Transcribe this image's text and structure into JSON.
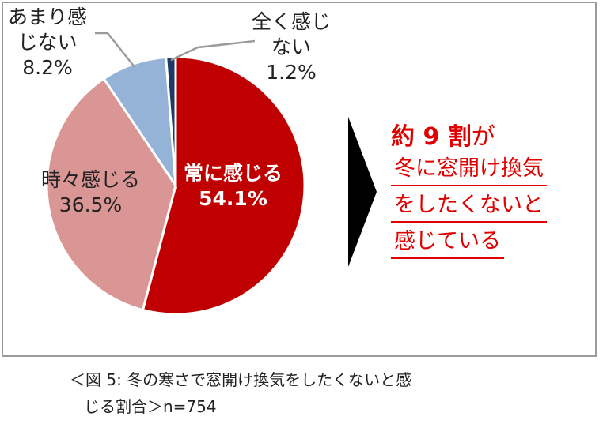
{
  "chart_data": {
    "type": "pie",
    "slices": [
      {
        "label": "常に感じる",
        "value": 54.1,
        "value_text": "54.1%",
        "color": "#c00000"
      },
      {
        "label": "時々感じる",
        "value": 36.5,
        "value_text": "36.5%",
        "color": "#d99694"
      },
      {
        "label_line1": "あまり感",
        "label_line2": "じない",
        "value": 8.2,
        "value_text": "8.2%",
        "color": "#95b3d7"
      },
      {
        "label_line1": "全く感じ",
        "label_line2": "ない",
        "value": 1.2,
        "value_text": "1.2%",
        "color": "#1f3864"
      }
    ]
  },
  "callout": {
    "line1_bold": "約 9 割",
    "line1_rest": "が",
    "row1": "冬に窓開け換気",
    "row2": "をしたくないと",
    "row3": "感じている",
    "color": "#e00000"
  },
  "caption": {
    "line1": "＜図 5:  冬の寒さで窓開け換気をしたくないと感",
    "line2": "じる割合＞n=754"
  }
}
